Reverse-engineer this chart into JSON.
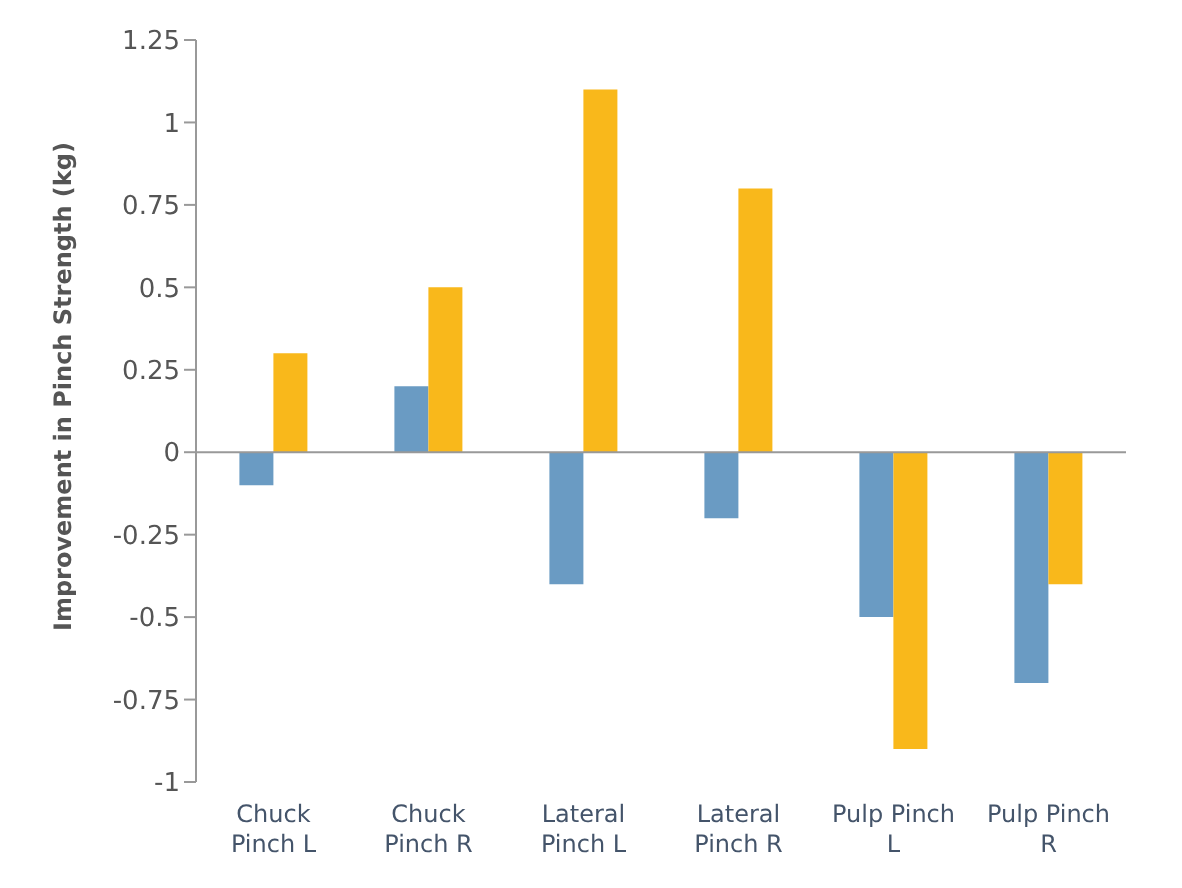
{
  "chart_data": {
    "type": "bar",
    "ylabel": "Improvement in Pinch Strength (kg)",
    "categories": [
      "Chuck Pinch L",
      "Chuck Pinch R",
      "Lateral Pinch L",
      "Lateral Pinch R",
      "Pulp Pinch L",
      "Pulp Pinch R"
    ],
    "series": [
      {
        "color": "#6a9bc3",
        "values": [
          -0.1,
          0.2,
          -0.4,
          -0.2,
          -0.5,
          -0.7
        ]
      },
      {
        "color": "#f9b81b",
        "values": [
          0.3,
          0.5,
          1.1,
          0.8,
          -0.9,
          -0.4
        ]
      }
    ],
    "ylim": [
      -1,
      1.25
    ],
    "yticks": [
      -1,
      -0.75,
      -0.5,
      -0.25,
      0,
      0.25,
      0.5,
      0.75,
      1,
      1.25
    ],
    "legend": false
  }
}
